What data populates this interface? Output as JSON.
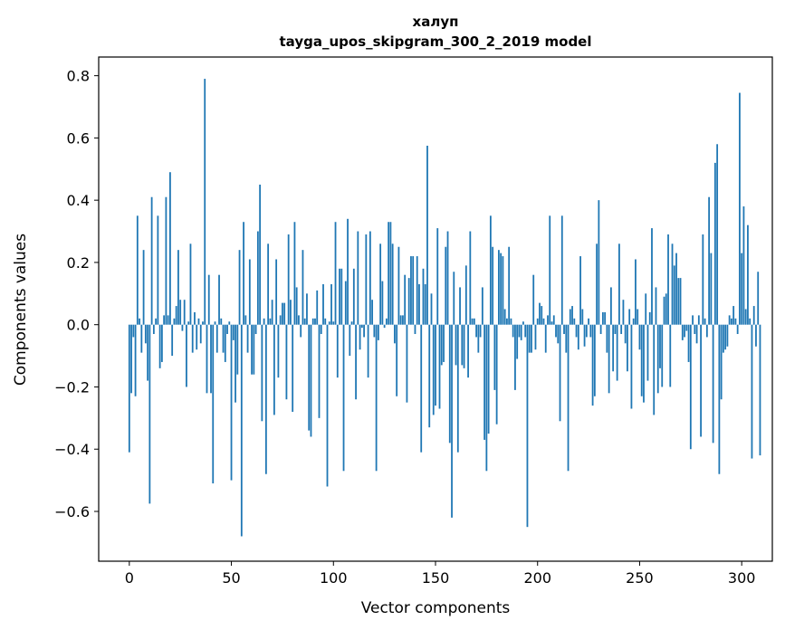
{
  "chart_data": {
    "type": "bar",
    "title_line1": "халуп",
    "title_line2": "tayga_upos_skipgram_300_2_2019 model",
    "xlabel": "Vector components",
    "ylabel": "Components values",
    "xlim": [
      -15,
      315
    ],
    "ylim": [
      -0.76,
      0.86
    ],
    "x_ticks": [
      0,
      50,
      100,
      150,
      200,
      250,
      300
    ],
    "x_tick_labels": [
      "0",
      "50",
      "100",
      "150",
      "200",
      "250",
      "300"
    ],
    "y_ticks": [
      -0.6,
      -0.4,
      -0.2,
      0.0,
      0.2,
      0.4,
      0.6,
      0.8
    ],
    "y_tick_labels": [
      "−0.6",
      "−0.4",
      "−0.2",
      "0.0",
      "0.2",
      "0.4",
      "0.6",
      "0.8"
    ],
    "bar_color": "#1f77b4",
    "values": [
      -0.41,
      -0.22,
      -0.04,
      -0.23,
      0.35,
      0.02,
      -0.09,
      0.24,
      -0.06,
      -0.18,
      -0.575,
      0.41,
      -0.03,
      0.02,
      0.35,
      -0.14,
      -0.12,
      0.03,
      0.41,
      0.03,
      0.49,
      -0.1,
      0.02,
      0.06,
      0.24,
      0.08,
      -0.02,
      0.08,
      -0.2,
      0.01,
      0.26,
      -0.09,
      0.04,
      -0.08,
      0.02,
      -0.06,
      0.01,
      0.79,
      -0.22,
      0.16,
      -0.22,
      -0.51,
      0.01,
      -0.09,
      0.16,
      0.02,
      -0.09,
      -0.12,
      -0.03,
      0.01,
      -0.5,
      -0.05,
      -0.25,
      -0.16,
      0.24,
      -0.68,
      0.33,
      0.03,
      -0.09,
      0.21,
      -0.16,
      -0.16,
      -0.03,
      0.3,
      0.45,
      -0.31,
      0.02,
      -0.48,
      0.26,
      0.02,
      0.08,
      -0.29,
      0.21,
      -0.17,
      0.03,
      0.07,
      0.07,
      -0.24,
      0.29,
      0.08,
      -0.28,
      0.33,
      0.12,
      0.03,
      -0.04,
      0.24,
      0.02,
      0.1,
      -0.34,
      -0.36,
      0.02,
      0.02,
      0.11,
      -0.3,
      -0.03,
      0.13,
      0.02,
      -0.52,
      0.01,
      0.13,
      0.01,
      0.33,
      -0.17,
      0.18,
      0.18,
      -0.47,
      0.14,
      0.34,
      -0.1,
      0.01,
      0.18,
      -0.24,
      0.3,
      -0.08,
      -0.01,
      -0.04,
      0.29,
      -0.17,
      0.3,
      0.08,
      -0.04,
      -0.47,
      -0.05,
      0.26,
      0.14,
      -0.01,
      0.02,
      0.33,
      0.33,
      0.26,
      -0.06,
      -0.23,
      0.25,
      0.03,
      0.03,
      0.16,
      -0.25,
      0.15,
      0.22,
      0.22,
      -0.03,
      0.22,
      0.13,
      -0.41,
      0.18,
      0.13,
      0.575,
      -0.33,
      0.1,
      -0.29,
      -0.26,
      0.31,
      -0.27,
      -0.13,
      -0.12,
      0.25,
      0.3,
      -0.38,
      -0.62,
      0.17,
      -0.13,
      -0.41,
      0.12,
      -0.13,
      -0.14,
      0.19,
      -0.17,
      0.3,
      0.02,
      0.02,
      -0.04,
      -0.09,
      -0.04,
      0.12,
      -0.37,
      -0.47,
      -0.35,
      0.35,
      0.25,
      -0.21,
      -0.32,
      0.24,
      0.23,
      0.22,
      0.05,
      0.02,
      0.25,
      0.02,
      -0.04,
      -0.21,
      -0.11,
      -0.04,
      -0.05,
      0.01,
      -0.04,
      -0.65,
      -0.09,
      -0.09,
      0.16,
      -0.08,
      0.02,
      0.07,
      0.06,
      0.02,
      -0.09,
      0.03,
      0.35,
      0.01,
      0.03,
      -0.04,
      -0.06,
      -0.31,
      0.35,
      -0.03,
      -0.09,
      -0.47,
      0.05,
      0.06,
      0.02,
      -0.04,
      -0.08,
      0.22,
      0.05,
      -0.07,
      -0.04,
      0.02,
      -0.04,
      -0.26,
      -0.23,
      0.26,
      0.4,
      -0.03,
      0.04,
      0.04,
      -0.09,
      -0.22,
      0.12,
      -0.15,
      -0.03,
      -0.18,
      0.26,
      -0.03,
      0.08,
      -0.06,
      -0.15,
      0.05,
      -0.27,
      0.02,
      0.21,
      0.05,
      -0.08,
      -0.23,
      -0.25,
      0.1,
      -0.18,
      0.04,
      0.31,
      -0.29,
      0.12,
      -0.22,
      -0.14,
      -0.2,
      0.09,
      0.1,
      0.29,
      -0.2,
      0.26,
      0.19,
      0.23,
      0.15,
      0.15,
      -0.05,
      -0.04,
      -0.02,
      -0.12,
      -0.4,
      0.03,
      -0.03,
      -0.06,
      0.03,
      -0.36,
      0.29,
      0.02,
      -0.04,
      0.41,
      0.23,
      -0.38,
      0.52,
      0.58,
      -0.48,
      -0.24,
      -0.09,
      -0.08,
      -0.07,
      0.03,
      0.02,
      0.06,
      0.02,
      -0.03,
      0.745,
      0.23,
      0.38,
      0.05,
      0.32,
      0.02,
      -0.43,
      0.06,
      -0.07,
      0.17,
      -0.42
    ]
  }
}
